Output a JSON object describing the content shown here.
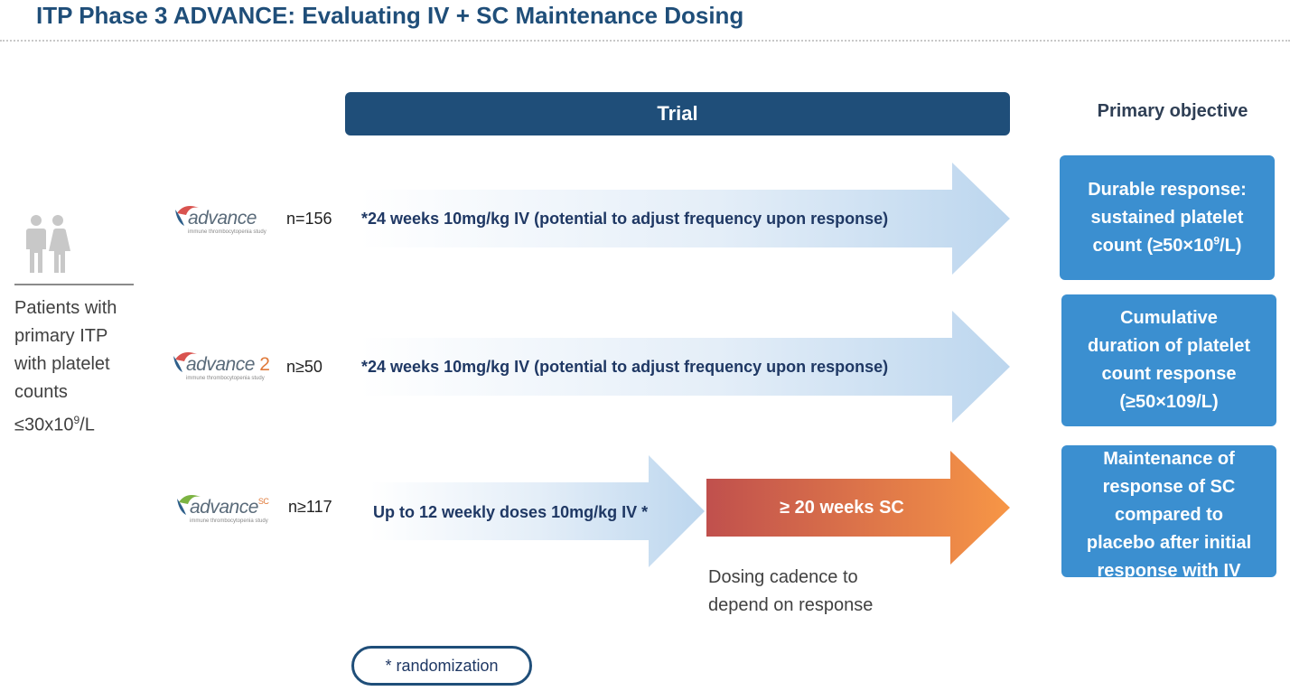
{
  "title": "ITP Phase 3 ADVANCE: Evaluating IV + SC Maintenance Dosing",
  "headers": {
    "trial": "Trial",
    "objective": "Primary objective"
  },
  "patients": {
    "line1": "Patients with",
    "line2": "primary ITP",
    "line3": "with platelet",
    "line4": "counts",
    "line5_pre": "≤30x10",
    "line5_sup": "9",
    "line5_post": "/L"
  },
  "rows": [
    {
      "logo": {
        "word": "advance",
        "suffix": "",
        "sub": "immune thrombocytopenia study"
      },
      "n": "n=156",
      "arrow_text": "24 weeks 10mg/kg IV (potential to adjust frequency upon response)",
      "star": "*"
    },
    {
      "logo": {
        "word": "advance",
        "suffix": "2",
        "sub": "immune thrombocytopenia study"
      },
      "n": "n≥50",
      "arrow_text": "24 weeks 10mg/kg IV (potential to adjust frequency upon response)",
      "star": "*"
    },
    {
      "logo": {
        "word": "advance",
        "suffix": "SC",
        "sub": "immune thrombocytopenia study"
      },
      "n": "n≥117",
      "arrow_text": "Up to 12 weekly doses 10mg/kg IV",
      "star": "*",
      "sc_text": "≥ 20 weeks SC",
      "cadence_line1": "Dosing cadence to",
      "cadence_line2": "depend on response"
    }
  ],
  "objectives": [
    {
      "line1": "Durable response:",
      "line2": "sustained platelet",
      "line3_pre": "count (≥50×10",
      "line3_sup": "9",
      "line3_post": "/L)"
    },
    {
      "line1": "Cumulative",
      "line2": "duration of platelet",
      "line3": "count response",
      "line4": "(≥50×109/L)"
    },
    {
      "line1": "Maintenance of",
      "line2": "response of SC",
      "line3": "compared to",
      "line4": "placebo after initial",
      "line5": "response with IV"
    }
  ],
  "footnote": "* randomization",
  "colors": {
    "navy": "#1f4e79",
    "objective_blue": "#3b8fd0",
    "arrow_light": "#c5dcf0",
    "sc_start": "#c0504d",
    "sc_end": "#f79646"
  }
}
